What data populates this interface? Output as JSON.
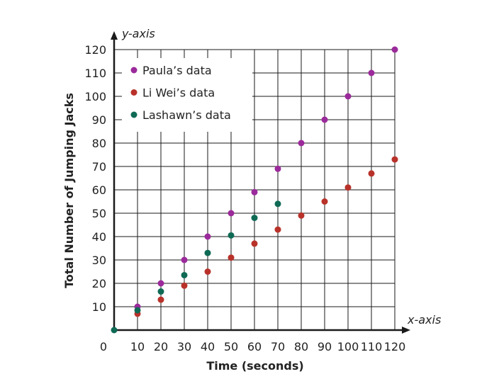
{
  "chart_data": {
    "type": "scatter",
    "xlabel": "Time (seconds)",
    "ylabel": "Total Number of Jumping Jacks",
    "x_axis_name": "x-axis",
    "y_axis_name": "y-axis",
    "xlim": [
      0,
      120
    ],
    "ylim": [
      0,
      120
    ],
    "x_ticks": [
      0,
      10,
      20,
      30,
      40,
      50,
      60,
      70,
      80,
      90,
      100,
      110,
      120
    ],
    "x_tick_labels": [
      "0",
      "10",
      "20",
      "30",
      "40",
      "50",
      "60",
      "70",
      "80",
      "90",
      "100",
      "110",
      "120"
    ],
    "y_ticks": [
      10,
      20,
      30,
      40,
      50,
      60,
      70,
      80,
      90,
      100,
      110,
      120
    ],
    "y_tick_labels": [
      "10",
      "20",
      "30",
      "40",
      "50",
      "60",
      "70",
      "80",
      "90",
      "100",
      "110",
      "120"
    ],
    "grid": true,
    "legend_position": "top-left",
    "origin_point": {
      "x": 0,
      "y": 0,
      "color": "#0f6a55"
    },
    "series": [
      {
        "name": "Paula’s data",
        "color": "#9b2a9b",
        "points": [
          {
            "x": 10,
            "y": 10
          },
          {
            "x": 20,
            "y": 20
          },
          {
            "x": 30,
            "y": 30
          },
          {
            "x": 40,
            "y": 40
          },
          {
            "x": 50,
            "y": 50
          },
          {
            "x": 60,
            "y": 59
          },
          {
            "x": 70,
            "y": 69
          },
          {
            "x": 80,
            "y": 80
          },
          {
            "x": 90,
            "y": 90
          },
          {
            "x": 100,
            "y": 100
          },
          {
            "x": 110,
            "y": 110
          },
          {
            "x": 120,
            "y": 120
          }
        ]
      },
      {
        "name": "Li Wei’s data",
        "color": "#b8322a",
        "points": [
          {
            "x": 10,
            "y": 7
          },
          {
            "x": 20,
            "y": 13
          },
          {
            "x": 30,
            "y": 19
          },
          {
            "x": 40,
            "y": 25
          },
          {
            "x": 50,
            "y": 31
          },
          {
            "x": 60,
            "y": 37
          },
          {
            "x": 70,
            "y": 43
          },
          {
            "x": 80,
            "y": 49
          },
          {
            "x": 90,
            "y": 55
          },
          {
            "x": 100,
            "y": 61
          },
          {
            "x": 110,
            "y": 67
          },
          {
            "x": 120,
            "y": 73
          }
        ]
      },
      {
        "name": "Lashawn’s data",
        "color": "#0f6a55",
        "points": [
          {
            "x": 10,
            "y": 8.5
          },
          {
            "x": 20,
            "y": 16.5
          },
          {
            "x": 30,
            "y": 23.5
          },
          {
            "x": 40,
            "y": 33
          },
          {
            "x": 50,
            "y": 40.5
          },
          {
            "x": 60,
            "y": 48
          },
          {
            "x": 70,
            "y": 54
          }
        ]
      }
    ]
  }
}
